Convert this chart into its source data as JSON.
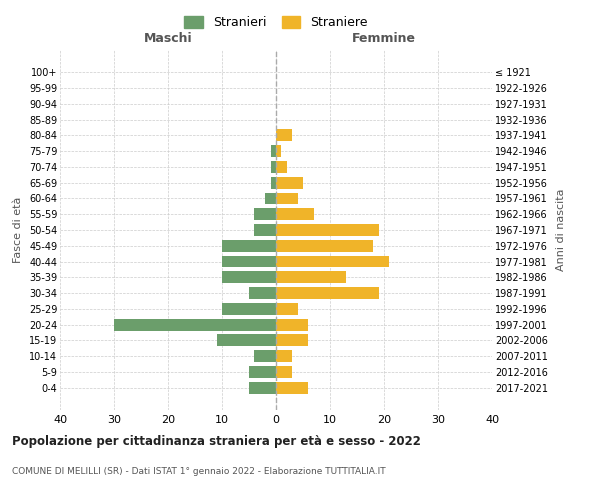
{
  "age_groups": [
    "0-4",
    "5-9",
    "10-14",
    "15-19",
    "20-24",
    "25-29",
    "30-34",
    "35-39",
    "40-44",
    "45-49",
    "50-54",
    "55-59",
    "60-64",
    "65-69",
    "70-74",
    "75-79",
    "80-84",
    "85-89",
    "90-94",
    "95-99",
    "100+"
  ],
  "birth_years": [
    "2017-2021",
    "2012-2016",
    "2007-2011",
    "2002-2006",
    "1997-2001",
    "1992-1996",
    "1987-1991",
    "1982-1986",
    "1977-1981",
    "1972-1976",
    "1967-1971",
    "1962-1966",
    "1957-1961",
    "1952-1956",
    "1947-1951",
    "1942-1946",
    "1937-1941",
    "1932-1936",
    "1927-1931",
    "1922-1926",
    "≤ 1921"
  ],
  "maschi": [
    5,
    5,
    4,
    11,
    30,
    10,
    5,
    10,
    10,
    10,
    4,
    4,
    2,
    1,
    1,
    1,
    0,
    0,
    0,
    0,
    0
  ],
  "femmine": [
    6,
    3,
    3,
    6,
    6,
    4,
    19,
    13,
    21,
    18,
    19,
    7,
    4,
    5,
    2,
    1,
    3,
    0,
    0,
    0,
    0
  ],
  "color_maschi": "#6b9e6b",
  "color_femmine": "#f0b429",
  "title": "Popolazione per cittadinanza straniera per età e sesso - 2022",
  "subtitle": "COMUNE DI MELILLI (SR) - Dati ISTAT 1° gennaio 2022 - Elaborazione TUTTITALIA.IT",
  "xlabel_left": "Maschi",
  "xlabel_right": "Femmine",
  "ylabel_left": "Fasce di età",
  "ylabel_right": "Anni di nascita",
  "legend_maschi": "Stranieri",
  "legend_femmine": "Straniere",
  "xlim": 40,
  "background_color": "#ffffff",
  "grid_color": "#cccccc"
}
